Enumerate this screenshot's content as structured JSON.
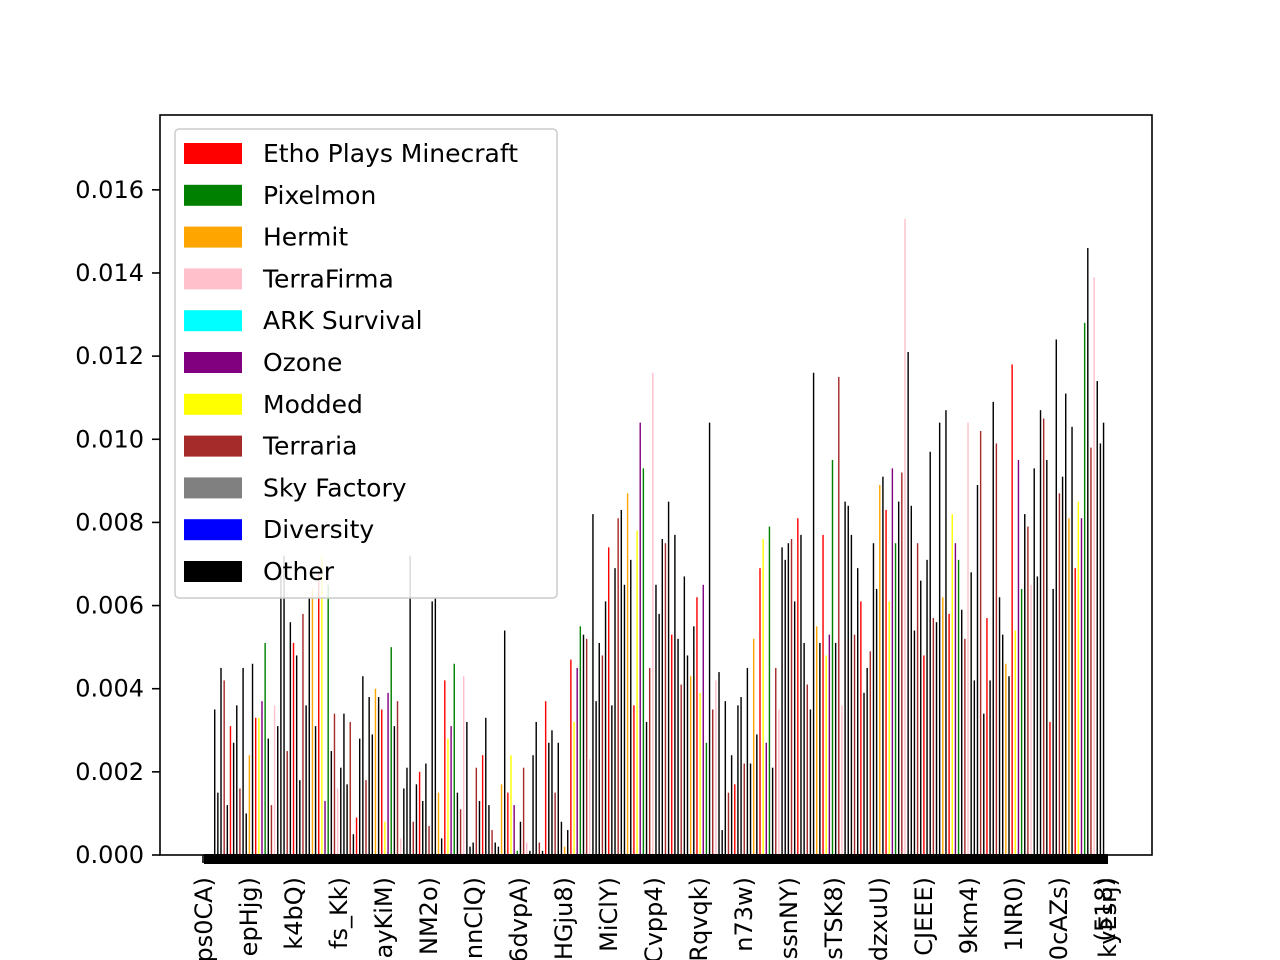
{
  "chart_data": {
    "type": "bar",
    "title": "",
    "xlabel": "",
    "ylabel": "",
    "ylim": [
      0,
      0.0178
    ],
    "y_ticks": [
      "0.000",
      "0.002",
      "0.004",
      "0.006",
      "0.008",
      "0.010",
      "0.012",
      "0.014",
      "0.016"
    ],
    "y_tick_values": [
      0,
      0.002,
      0.004,
      0.006,
      0.008,
      0.01,
      0.012,
      0.014,
      0.016
    ],
    "x_tick_labels": [
      "ps0CA)",
      "epHjg)",
      "k4bQ)",
      "fs_Kk)",
      "ayKiM)",
      "NM2o)",
      "nnClQ)",
      "6dvpA)",
      "HGju8)",
      "MiClY)",
      "Cvpp4)",
      "Rqvqk)",
      "n73w)",
      "ssnNY)",
      "sTSK8)",
      "dzxuU)",
      "CJEEE)",
      "9km4)",
      "1NR0)",
      "0cAZs)",
      "(518)",
      "kyEsrj)"
    ],
    "grid": false,
    "legend_position": "upper-left",
    "legend": [
      {
        "name": "Etho Plays Minecraft",
        "color": "#ff0000"
      },
      {
        "name": "Pixelmon",
        "color": "#008000"
      },
      {
        "name": "Hermit",
        "color": "#ffa500"
      },
      {
        "name": "TerraFirma",
        "color": "#ffc0cb"
      },
      {
        "name": "ARK Survival",
        "color": "#00ffff"
      },
      {
        "name": "Ozone",
        "color": "#800080"
      },
      {
        "name": "Modded",
        "color": "#ffff00"
      },
      {
        "name": "Terraria",
        "color": "#a52a2a"
      },
      {
        "name": "Sky Factory",
        "color": "#808080"
      },
      {
        "name": "Diversity",
        "color": "#0000ff"
      },
      {
        "name": "Other",
        "color": "#000000"
      }
    ],
    "bar_values": [
      0.0035,
      0.0015,
      0.0045,
      0.0042,
      0.0012,
      0.0031,
      0.0027,
      0.0036,
      0.0016,
      0.0045,
      0.001,
      0.0024,
      0.0046,
      0.0033,
      0.0033,
      0.0037,
      0.0051,
      0.0028,
      0.0012,
      0.0036,
      0.0031,
      0.0068,
      0.0072,
      0.0025,
      0.0056,
      0.0051,
      0.0048,
      0.0018,
      0.0058,
      0.0036,
      0.0062,
      0.0064,
      0.0031,
      0.0068,
      0.0072,
      0.0013,
      0.0065,
      0.0025,
      0.0034,
      0.0016,
      0.0021,
      0.0034,
      0.0017,
      0.0032,
      0.0005,
      0.0009,
      0.0028,
      0.0043,
      0.0018,
      0.0038,
      0.0029,
      0.004,
      0.0038,
      0.0035,
      0.0008,
      0.0039,
      0.005,
      0.0031,
      0.0037,
      0.0004,
      0.0016,
      0.0021,
      0.0072,
      0.0008,
      0.0017,
      0.002,
      0.0013,
      0.0022,
      0.0007,
      0.0061,
      0.0062,
      0.0015,
      0.0004,
      0.0042,
      0.0028,
      0.0031,
      0.0046,
      0.0015,
      0.0011,
      0.0043,
      0.0032,
      0.0002,
      0.0003,
      0.0021,
      0.0013,
      0.0024,
      0.0033,
      0.0012,
      0.0006,
      0.0003,
      0.0002,
      0.0017,
      0.0054,
      0.0015,
      0.0024,
      0.0012,
      0.0001,
      0.0008,
      0.0021,
      0.0003,
      0.0001,
      0.0024,
      0.0032,
      0.0003,
      0.0001,
      0.0037,
      0.0027,
      0.003,
      0.0015,
      0.0027,
      0.0008,
      0.0002,
      0.0006,
      0.0047,
      0.0032,
      0.0045,
      0.0055,
      0.0053,
      0.0052,
      0.0023,
      0.0082,
      0.0037,
      0.0051,
      0.0048,
      0.0061,
      0.0074,
      0.0036,
      0.0069,
      0.0081,
      0.0083,
      0.0065,
      0.0087,
      0.0071,
      0.0036,
      0.0078,
      0.0104,
      0.0093,
      0.0032,
      0.0045,
      0.0116,
      0.0065,
      0.0058,
      0.0076,
      0.0075,
      0.0085,
      0.0053,
      0.0077,
      0.0052,
      0.0041,
      0.0067,
      0.0048,
      0.0043,
      0.0055,
      0.0062,
      0.0039,
      0.0065,
      0.0027,
      0.0104,
      0.0035,
      0.0042,
      0.0044,
      0.0006,
      0.0037,
      0.0015,
      0.0024,
      0.0017,
      0.0036,
      0.0038,
      0.0022,
      0.0045,
      0.0022,
      0.0052,
      0.0029,
      0.0069,
      0.0076,
      0.0027,
      0.0079,
      0.0021,
      0.0045,
      0.0035,
      0.0074,
      0.0071,
      0.0075,
      0.0076,
      0.0061,
      0.0081,
      0.0077,
      0.0051,
      0.0041,
      0.0035,
      0.0116,
      0.0055,
      0.0051,
      0.0077,
      0.0048,
      0.0053,
      0.0095,
      0.0051,
      0.0115,
      0.0036,
      0.0085,
      0.0084,
      0.0077,
      0.0053,
      0.0069,
      0.0061,
      0.0039,
      0.0045,
      0.0049,
      0.0075,
      0.0064,
      0.0089,
      0.0091,
      0.0083,
      0.0061,
      0.0093,
      0.0075,
      0.0085,
      0.0092,
      0.0153,
      0.0121,
      0.0084,
      0.0054,
      0.0075,
      0.0066,
      0.0048,
      0.0071,
      0.0097,
      0.0057,
      0.0056,
      0.0104,
      0.0062,
      0.0107,
      0.0058,
      0.0082,
      0.0075,
      0.0071,
      0.0059,
      0.0052,
      0.0104,
      0.0068,
      0.0042,
      0.0089,
      0.0102,
      0.0034,
      0.0057,
      0.0042,
      0.0109,
      0.0099,
      0.0062,
      0.0053,
      0.0046,
      0.0043,
      0.0118,
      0.0054,
      0.0095,
      0.0064,
      0.0082,
      0.0079,
      0.0065,
      0.0093,
      0.0067,
      0.0107,
      0.0105,
      0.0095,
      0.0032,
      0.0064,
      0.0124,
      0.0087,
      0.0091,
      0.0111,
      0.0081,
      0.0103,
      0.0069,
      0.0085,
      0.0081,
      0.0128,
      0.0146,
      0.0098,
      0.0139,
      0.0114,
      0.0099,
      0.0104
    ],
    "bar_colors_cycle": [
      "#000000",
      "#000000",
      "#000000",
      "#a52a2a",
      "#000000",
      "#ff0000",
      "#000000",
      "#000000",
      "#a52a2a",
      "#000000",
      "#000000",
      "#ffa500",
      "#000000",
      "#ff0000",
      "#ffff00",
      "#800080",
      "#008000",
      "#000000",
      "#a52a2a",
      "#ffc0cb"
    ]
  }
}
